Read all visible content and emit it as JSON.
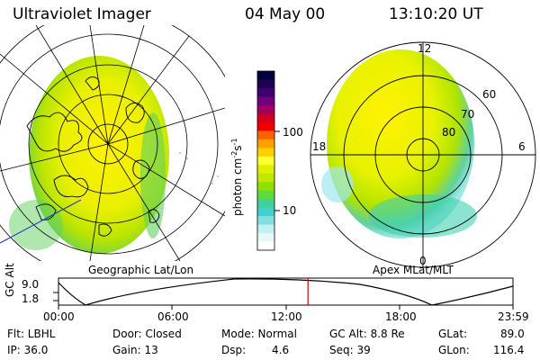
{
  "header": {
    "instrument": "Ultraviolet Imager",
    "date": "04 May 00",
    "time": "13:10:20 UT"
  },
  "colorbar": {
    "unit_label": "photon cm",
    "unit_exp1": "-2",
    "unit_s": "s",
    "unit_exp2": "-1",
    "ticks": [
      "100",
      "10"
    ],
    "colors": [
      "#000040",
      "#200050",
      "#400070",
      "#700080",
      "#a00060",
      "#d00020",
      "#f00000",
      "#ff6000",
      "#ffa000",
      "#ffd000",
      "#ffff30",
      "#e0f000",
      "#c0e800",
      "#90e000",
      "#60d840",
      "#40d0a0",
      "#40d0d0",
      "#80e0e0",
      "#c0f0f0",
      "#e8f8f8",
      "#ffffff"
    ]
  },
  "geo_panel": {
    "caption": "Geographic Lat/Lon"
  },
  "polar_panel": {
    "caption": "Apex MLat/MLT",
    "mlt_labels": {
      "top": "12",
      "left": "18",
      "right": "6",
      "bottom": "0"
    },
    "lat_labels": [
      "60",
      "70",
      "80"
    ]
  },
  "timeline": {
    "axis_label": "GC Alt",
    "y_ticks": [
      "9.0",
      "1.8"
    ],
    "x_ticks": [
      "00:00",
      "06:00",
      "12:00",
      "18:00",
      "23:59"
    ],
    "current_time_fraction": 0.5489
  },
  "info": {
    "filter": "Flt: LBHL",
    "ip": "IP: 36.0",
    "door": "Door: Closed",
    "gain": "Gain: 13",
    "mode": "Mode: Normal",
    "dsp_label": "Dsp:",
    "dsp_value": "4.6",
    "gc_alt": "GC Alt: 8.8 Re",
    "seq": "Seq: 39",
    "glat_label": "GLat:",
    "glat_value": "89.0",
    "glon_label": "GLon:",
    "glon_value": "116.4"
  }
}
